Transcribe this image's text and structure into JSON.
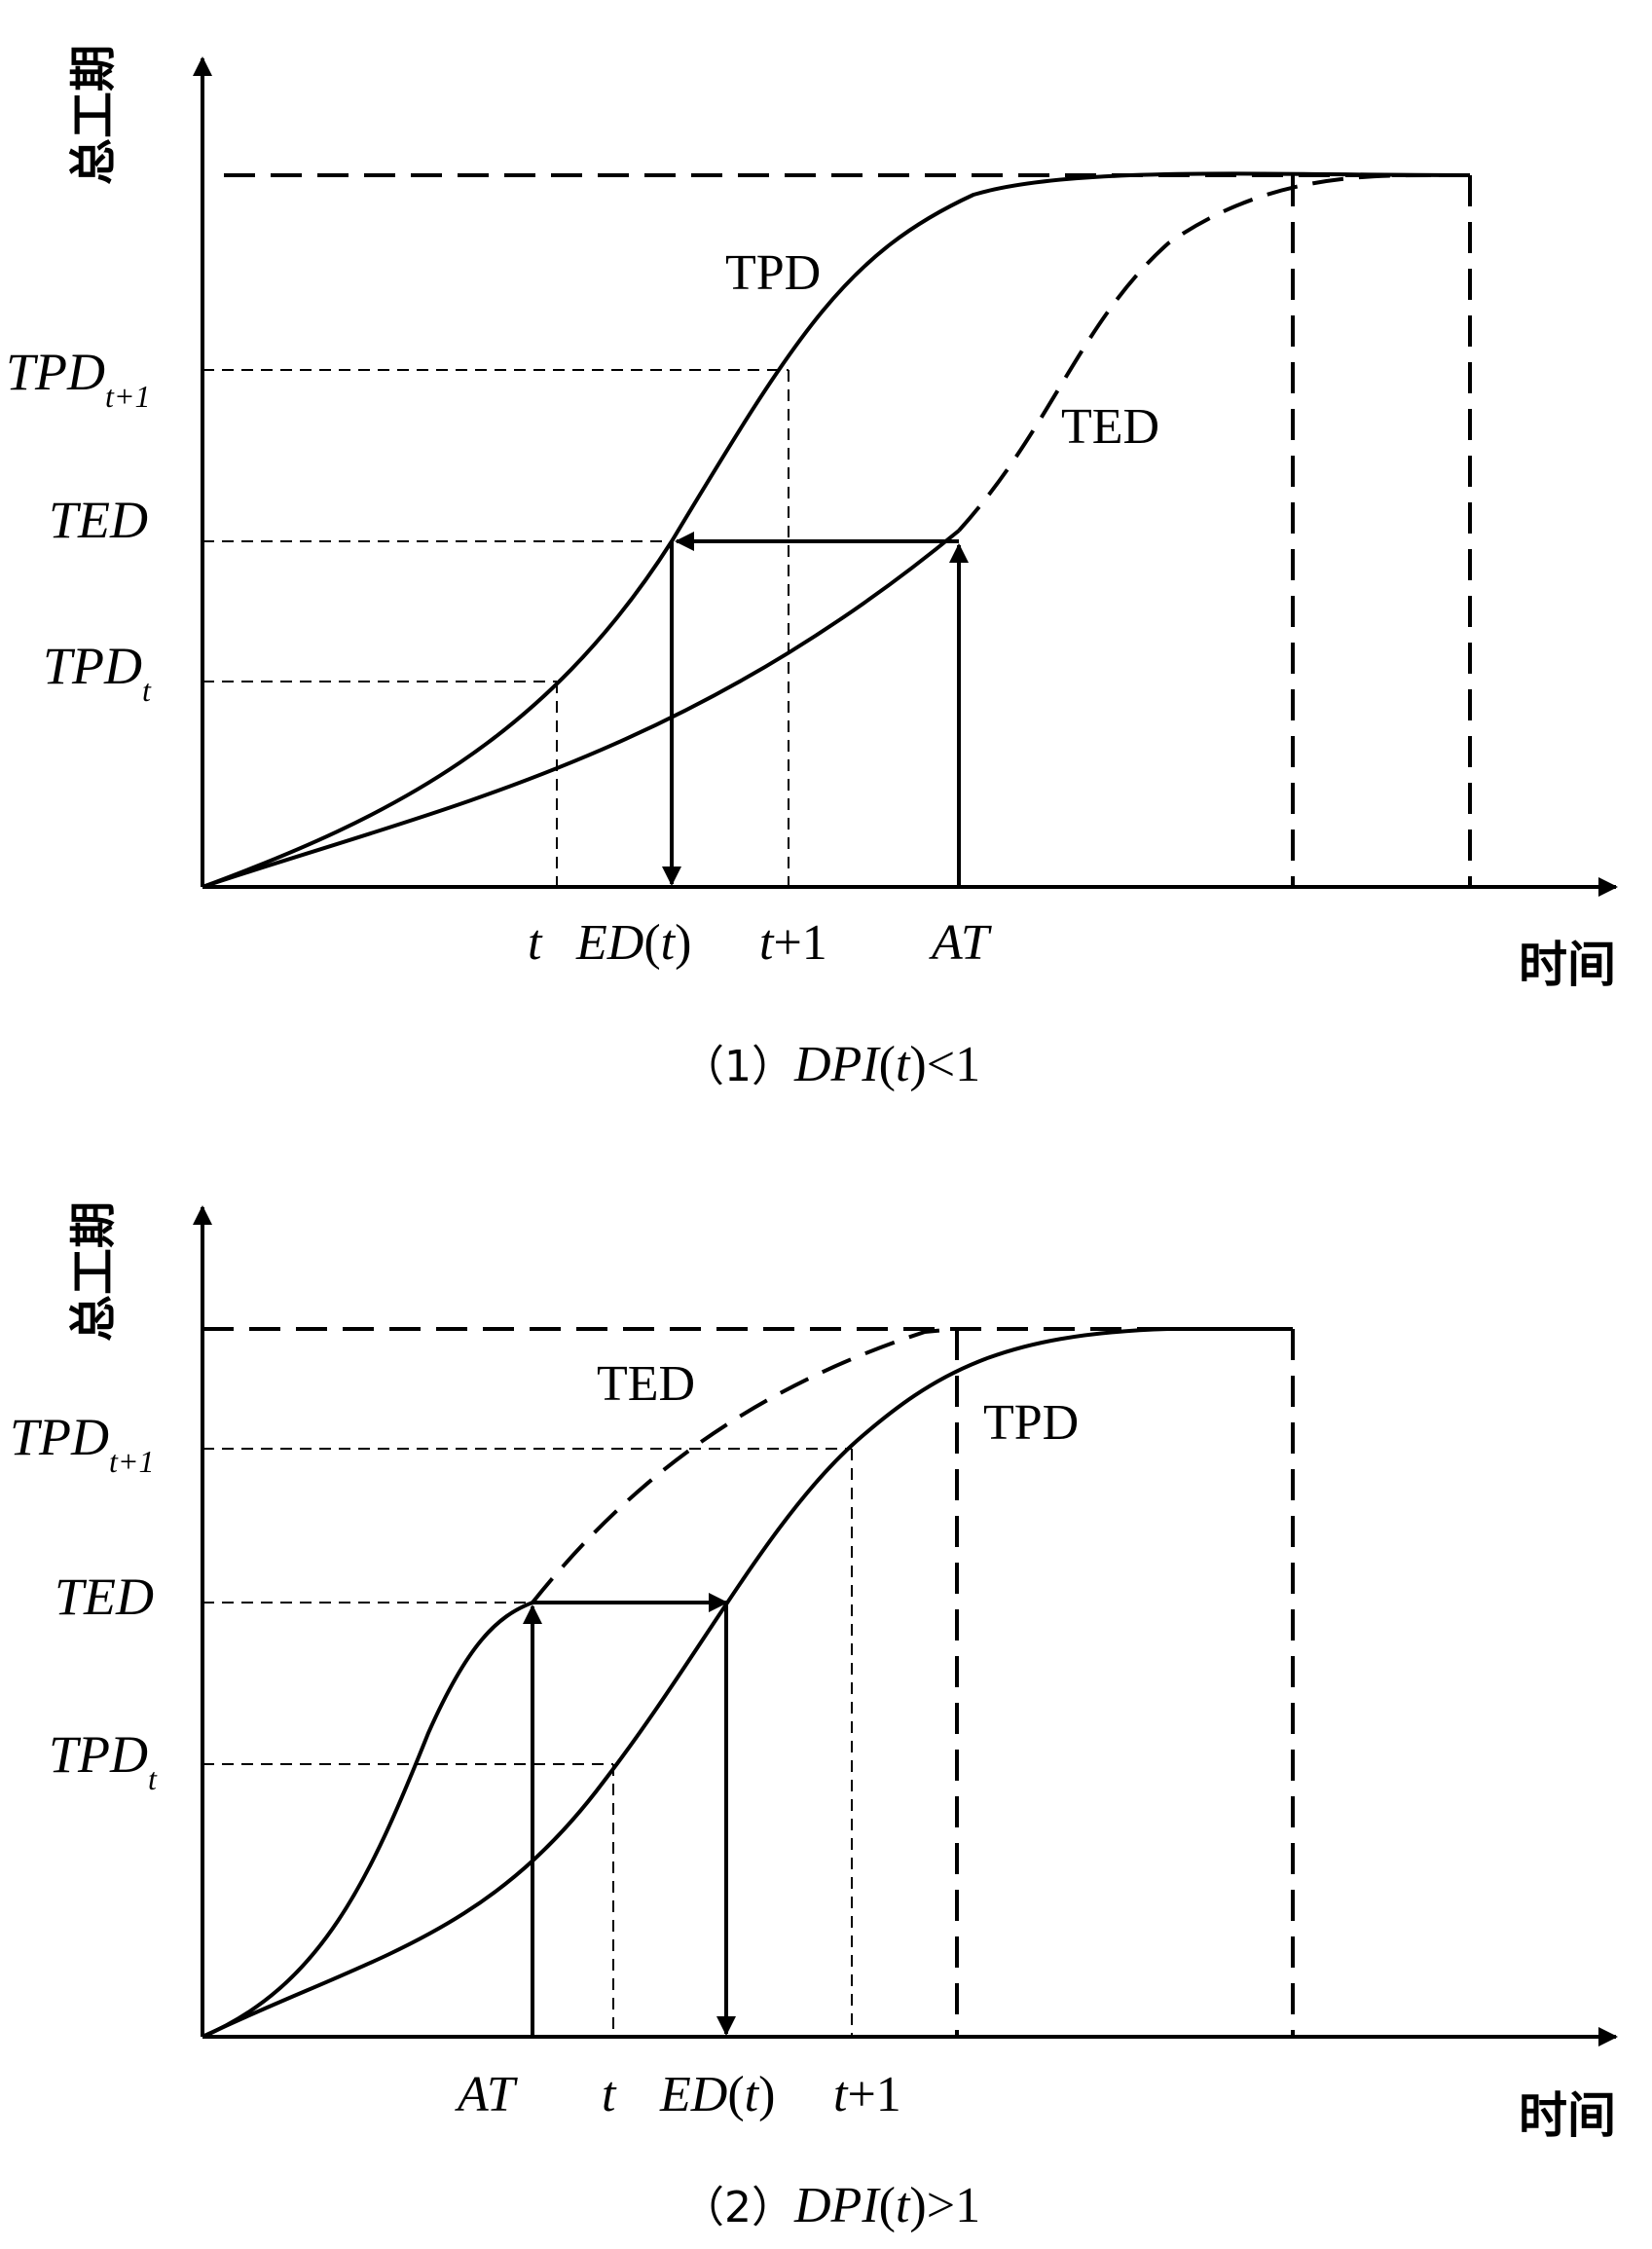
{
  "panel1": {
    "y_axis_label": "总工期",
    "x_axis_label": "时间",
    "caption_prefix": "（1）",
    "caption_dpi": "DPI",
    "caption_paren_open": "(",
    "caption_t": "t",
    "caption_rest": ")<1",
    "tpd_curve_label": "TPD",
    "ted_curve_label": "TED",
    "y_tick_tpd_t1_main": "TPD",
    "y_tick_tpd_t1_sub": "t+1",
    "y_tick_ted": "TED",
    "y_tick_tpd_t_main": "TPD",
    "y_tick_tpd_t_sub": "t",
    "x_tick_t": "t",
    "x_tick_ed_main": "ED",
    "x_tick_ed_open": "(",
    "x_tick_ed_t": "t",
    "x_tick_ed_close": ")",
    "x_tick_t1_t": "t",
    "x_tick_t1_rest": "+1",
    "x_tick_at": "AT"
  },
  "panel2": {
    "y_axis_label": "总工期",
    "x_axis_label": "时间",
    "caption_prefix": "（2）",
    "caption_dpi": "DPI",
    "caption_paren_open": "(",
    "caption_t": "t",
    "caption_rest": ")>1",
    "tpd_curve_label": "TPD",
    "ted_curve_label": "TED",
    "y_tick_tpd_t1_main": "TPD",
    "y_tick_tpd_t1_sub": "t+1",
    "y_tick_ted": "TED",
    "y_tick_tpd_t_main": "TPD",
    "y_tick_tpd_t_sub": "t",
    "x_tick_at": "AT",
    "x_tick_t": "t",
    "x_tick_ed_main": "ED",
    "x_tick_ed_open": "(",
    "x_tick_ed_t": "t",
    "x_tick_ed_close": ")",
    "x_tick_t1_t": "t",
    "x_tick_t1_rest": "+1"
  }
}
